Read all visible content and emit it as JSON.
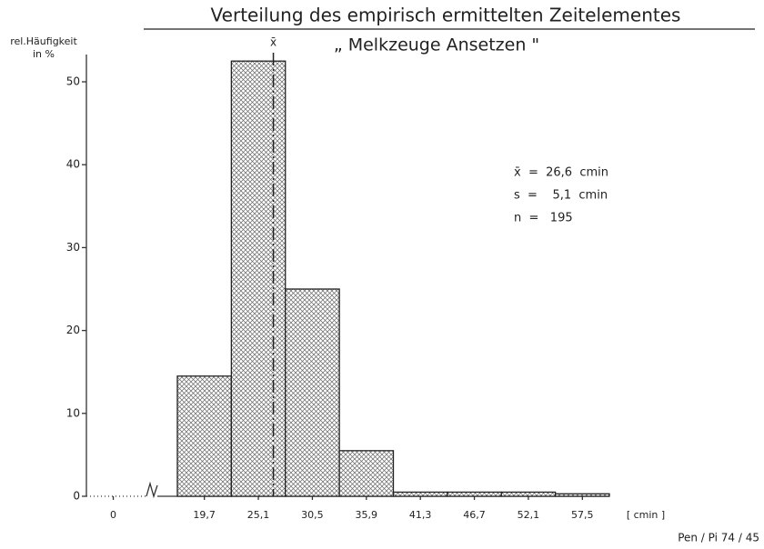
{
  "chart_data": {
    "type": "histogram",
    "title": "Verteilung des empirisch ermittelten Zeitelementes",
    "subtitle": "„ Melkzeuge Ansetzen \"",
    "ylabel": [
      "rel.Häufigkeit",
      "in %"
    ],
    "xlabel": "[ cmin ]",
    "bins": [
      17,
      22.4,
      27.8,
      33.2,
      38.6,
      44,
      49.4,
      54.8,
      60.2
    ],
    "values": [
      14.5,
      52.5,
      25,
      5.5,
      0.5,
      0.5,
      0.5,
      0.3
    ],
    "xlim": [
      -2.5,
      60.2
    ],
    "x_break": [
      3,
      15
    ],
    "xticks": [
      0,
      19.7,
      25.1,
      30.5,
      35.9,
      41.3,
      46.7,
      52.1,
      57.5
    ],
    "xtick_labels": [
      "0",
      "19,7",
      "25,1",
      "30,5",
      "35,9",
      "41,3",
      "46,7",
      "52,1",
      "57,5"
    ],
    "ylim": [
      0,
      55
    ],
    "yticks": [
      0,
      10,
      20,
      30,
      40,
      50
    ],
    "mean_line": {
      "value": 26.6,
      "label": "x̄"
    },
    "annotations": [
      "x̄  =  26,6  cmin",
      "s  =    5,1  cmin",
      "n  =   195"
    ],
    "footer": "Pen / Pi  74 / 45"
  }
}
